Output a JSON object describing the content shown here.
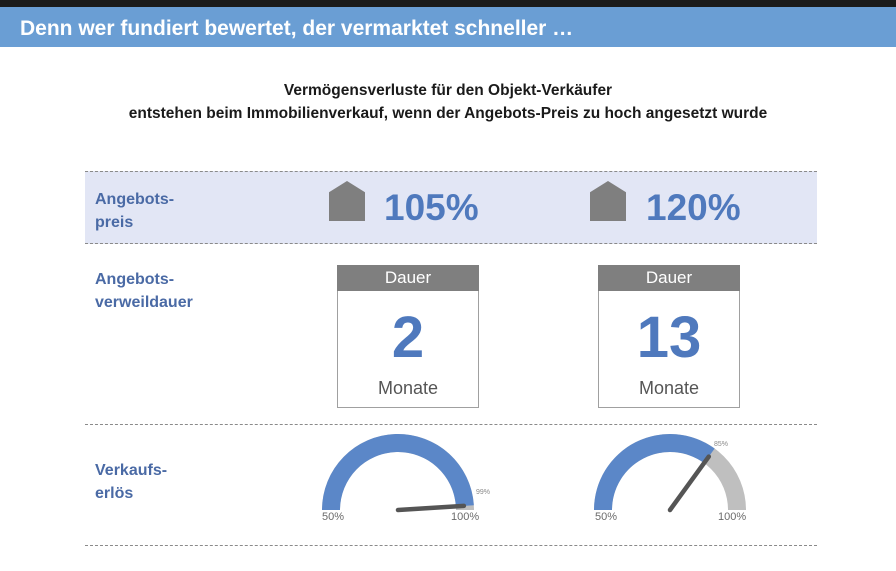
{
  "header": {
    "title": "Denn wer fundiert bewertet, der vermarktet schneller …"
  },
  "subtitle": {
    "line1": "Vermögensverluste für den Objekt-Verkäufer",
    "line2": "entstehen  beim Immobilienverkauf,  wenn der Angebots-Preis zu hoch angesetzt wurde"
  },
  "rows": {
    "price_label": "Angebots-\npreis",
    "duration_label": "Angebots-\nverweildauer",
    "revenue_label": "Verkaufs-\nerlös"
  },
  "icons": {
    "price": "house-icon"
  },
  "colors": {
    "accent": "#4f79bd",
    "header": "#6a9ed4",
    "band": "#e2e6f5",
    "gauge_fill": "#5b87c8",
    "gauge_rest": "#bfbfbf"
  },
  "scenarios": [
    {
      "price": "105%",
      "duration": {
        "header": "Dauer",
        "value": "2",
        "unit": "Monate"
      },
      "gauge": {
        "min_label": "50%",
        "max_label": "100%",
        "value_label": "99%",
        "value": 99,
        "min": 50,
        "max": 100
      }
    },
    {
      "price": "120%",
      "duration": {
        "header": "Dauer",
        "value": "13",
        "unit": "Monate"
      },
      "gauge": {
        "min_label": "50%",
        "max_label": "100%",
        "value_label": "85%",
        "value": 85,
        "min": 50,
        "max": 100
      }
    }
  ]
}
